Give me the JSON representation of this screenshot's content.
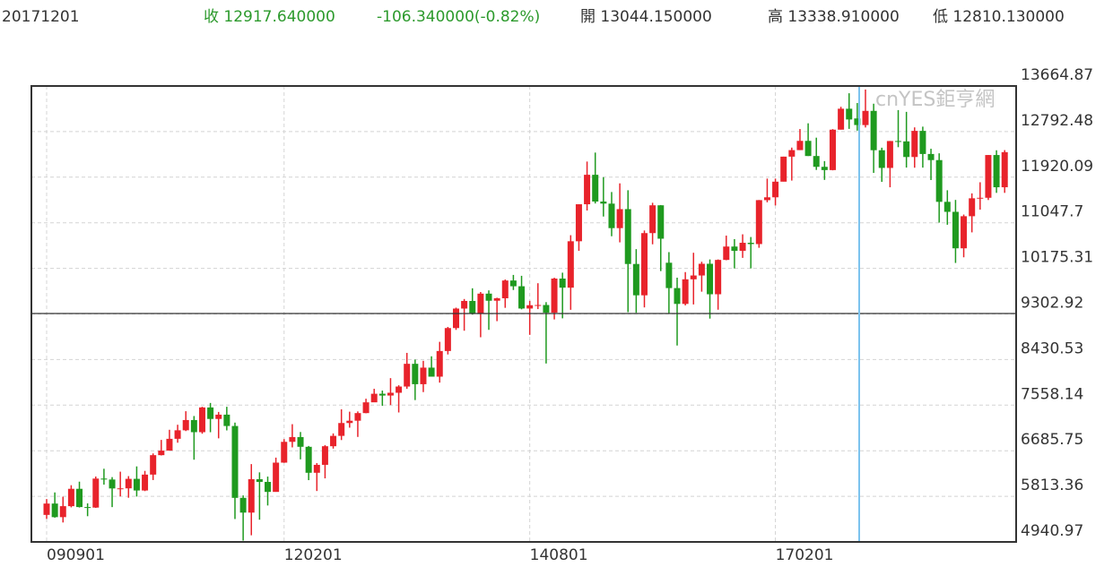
{
  "header": {
    "date": "20171201",
    "close": {
      "label": "收",
      "value": "12917.640000"
    },
    "change": "-106.340000(-0.82%)",
    "open": {
      "label": "開",
      "value": "13044.150000"
    },
    "high": {
      "label": "高",
      "value": "13338.910000"
    },
    "low": {
      "label": "低",
      "value": "12810.130000"
    }
  },
  "watermark": "cnYES鉅亨網",
  "chart_data": {
    "type": "candlestick",
    "up_color": "#e8232b",
    "down_color": "#1f9a1f",
    "grid": true,
    "ylim": [
      4940.97,
      13664.87
    ],
    "yticks": [
      4940.97,
      5813.36,
      6685.75,
      7558.14,
      8430.53,
      9302.92,
      10175.31,
      11047.7,
      11920.09,
      12792.48,
      13664.87
    ],
    "categories": [
      "090901",
      null,
      null,
      null,
      null,
      null,
      null,
      null,
      null,
      null,
      null,
      null,
      null,
      null,
      null,
      null,
      null,
      null,
      null,
      null,
      null,
      null,
      null,
      null,
      null,
      null,
      null,
      null,
      null,
      "120201",
      null,
      null,
      null,
      null,
      null,
      null,
      null,
      null,
      null,
      null,
      null,
      null,
      null,
      null,
      null,
      null,
      null,
      null,
      null,
      null,
      null,
      null,
      null,
      null,
      null,
      null,
      null,
      null,
      null,
      "140801",
      null,
      null,
      null,
      null,
      null,
      null,
      null,
      null,
      null,
      null,
      null,
      null,
      null,
      null,
      null,
      null,
      null,
      null,
      null,
      null,
      null,
      null,
      null,
      null,
      null,
      null,
      null,
      null,
      null,
      "170201",
      null,
      null,
      null,
      null,
      null,
      null,
      null,
      null,
      null,
      null,
      null,
      null,
      null,
      null,
      null,
      null,
      null,
      null,
      null,
      null,
      null,
      null,
      null,
      null,
      null,
      null,
      null,
      null
    ],
    "ohlc": [
      [
        5458,
        5761,
        5382,
        5675
      ],
      [
        5675,
        5888,
        5405,
        5415
      ],
      [
        5415,
        5806,
        5313,
        5625
      ],
      [
        5625,
        6026,
        5602,
        5957
      ],
      [
        5957,
        6094,
        5599,
        5608
      ],
      [
        5608,
        5679,
        5433,
        5598
      ],
      [
        5598,
        6192,
        5592,
        6153
      ],
      [
        6153,
        6341,
        6037,
        6135
      ],
      [
        6135,
        6181,
        5607,
        5964
      ],
      [
        5964,
        6285,
        5812,
        5966
      ],
      [
        5966,
        6200,
        5786,
        6148
      ],
      [
        6148,
        6386,
        5809,
        5925
      ],
      [
        5925,
        6300,
        5913,
        6229
      ],
      [
        6229,
        6634,
        6125,
        6601
      ],
      [
        6601,
        6893,
        6595,
        6688
      ],
      [
        6688,
        7087,
        6688,
        6914
      ],
      [
        6914,
        7183,
        6839,
        7077
      ],
      [
        7077,
        7442,
        7062,
        7273
      ],
      [
        7273,
        7350,
        6514,
        7041
      ],
      [
        7041,
        7527,
        7011,
        7514
      ],
      [
        7514,
        7600,
        7040,
        7294
      ],
      [
        7294,
        7428,
        6923,
        7376
      ],
      [
        7376,
        7527,
        7075,
        7159
      ],
      [
        7159,
        7224,
        5379,
        5784
      ],
      [
        5784,
        5831,
        4966,
        5502
      ],
      [
        5502,
        6430,
        5068,
        6141
      ],
      [
        6141,
        6272,
        5366,
        6089
      ],
      [
        6089,
        6191,
        5638,
        5898
      ],
      [
        5898,
        6554,
        5900,
        6458
      ],
      [
        6458,
        6908,
        6454,
        6856
      ],
      [
        6856,
        7194,
        6750,
        6947
      ],
      [
        6947,
        7044,
        6521,
        6761
      ],
      [
        6761,
        6777,
        6123,
        6264
      ],
      [
        6264,
        6450,
        5915,
        6416
      ],
      [
        6416,
        6794,
        6157,
        6772
      ],
      [
        6772,
        7017,
        6726,
        6970
      ],
      [
        6970,
        7478,
        6890,
        7216
      ],
      [
        7216,
        7433,
        7127,
        7260
      ],
      [
        7260,
        7438,
        6950,
        7406
      ],
      [
        7406,
        7681,
        7403,
        7612
      ],
      [
        7612,
        7871,
        7626,
        7776
      ],
      [
        7776,
        7837,
        7545,
        7742
      ],
      [
        7742,
        8075,
        7560,
        7795
      ],
      [
        7795,
        7939,
        7418,
        7914
      ],
      [
        7914,
        8558,
        7870,
        8349
      ],
      [
        8349,
        8430,
        7655,
        7959
      ],
      [
        7959,
        8406,
        7808,
        8276
      ],
      [
        8276,
        8493,
        8103,
        8103
      ],
      [
        8103,
        8770,
        7989,
        8594
      ],
      [
        8594,
        9055,
        8528,
        9033
      ],
      [
        9033,
        9424,
        8998,
        9406
      ],
      [
        9406,
        9589,
        8982,
        9552
      ],
      [
        9552,
        9794,
        9290,
        9306
      ],
      [
        9306,
        9723,
        8857,
        9692
      ],
      [
        9692,
        9754,
        8999,
        9556
      ],
      [
        9556,
        9614,
        9165,
        9603
      ],
      [
        9603,
        9962,
        9420,
        9943
      ],
      [
        9943,
        10050,
        9761,
        9833
      ],
      [
        9833,
        10033,
        9392,
        9407
      ],
      [
        9407,
        9554,
        8903,
        9470
      ],
      [
        9470,
        9891,
        9396,
        9474
      ],
      [
        9474,
        9529,
        8355,
        9327
      ],
      [
        9327,
        9996,
        9198,
        9980
      ],
      [
        9980,
        10093,
        9219,
        9806
      ],
      [
        9806,
        10810,
        9382,
        10694
      ],
      [
        10694,
        11402,
        10511,
        11402
      ],
      [
        11402,
        12219,
        11282,
        11966
      ],
      [
        11966,
        12391,
        11417,
        11454
      ],
      [
        11454,
        11920,
        11167,
        11414
      ],
      [
        11414,
        11636,
        10790,
        10945
      ],
      [
        10945,
        11802,
        10673,
        11309
      ],
      [
        11309,
        11670,
        9338,
        10259
      ],
      [
        10259,
        10543,
        9325,
        9660
      ],
      [
        9660,
        10900,
        9428,
        10850
      ],
      [
        10850,
        11430,
        10636,
        11382
      ],
      [
        11382,
        11387,
        10123,
        10743
      ],
      [
        10283,
        10486,
        9314,
        9798
      ],
      [
        9798,
        9997,
        8699,
        9495
      ],
      [
        9495,
        10104,
        9467,
        9966
      ],
      [
        9966,
        10474,
        9485,
        10039
      ],
      [
        10039,
        10302,
        9729,
        10263
      ],
      [
        10263,
        10346,
        9214,
        9680
      ],
      [
        9680,
        10346,
        9384,
        10337
      ],
      [
        10337,
        10802,
        10331,
        10593
      ],
      [
        10593,
        10735,
        10174,
        10511
      ],
      [
        10511,
        10827,
        10376,
        10665
      ],
      [
        10665,
        10775,
        10175,
        10640
      ],
      [
        10640,
        11483,
        10569,
        11481
      ],
      [
        11481,
        11893,
        11440,
        11535
      ],
      [
        11535,
        11893,
        11379,
        11834
      ],
      [
        11834,
        12313,
        11838,
        12313
      ],
      [
        12313,
        12486,
        11855,
        12438
      ],
      [
        12438,
        12841,
        12438,
        12615
      ],
      [
        12615,
        12951,
        12325,
        12325
      ],
      [
        12325,
        12676,
        12059,
        12118
      ],
      [
        12118,
        12228,
        11868,
        12056
      ],
      [
        12056,
        12840,
        12051,
        12829
      ],
      [
        12829,
        13267,
        12831,
        13230
      ],
      [
        13230,
        13526,
        12844,
        13024
      ],
      [
        13044.15,
        13338.91,
        12810.13,
        12917.64
      ],
      [
        12917,
        13597,
        12871,
        13189
      ],
      [
        13189,
        13326,
        12002,
        12436
      ],
      [
        12436,
        12484,
        11831,
        12097
      ],
      [
        12097,
        12613,
        11727,
        12612
      ],
      [
        12612,
        13204,
        12494,
        12605
      ],
      [
        12605,
        13170,
        12104,
        12306
      ],
      [
        12306,
        12873,
        12101,
        12806
      ],
      [
        12806,
        12887,
        12103,
        12364
      ],
      [
        12364,
        12464,
        11865,
        12247
      ],
      [
        12247,
        12377,
        11051,
        11448
      ],
      [
        11448,
        11670,
        11010,
        11257
      ],
      [
        11257,
        11485,
        10279,
        10559
      ],
      [
        10559,
        11205,
        10387,
        11173
      ],
      [
        11173,
        11610,
        10864,
        11516
      ],
      [
        11516,
        11823,
        11299,
        11526
      ],
      [
        11526,
        12344,
        11483,
        12344
      ],
      [
        12344,
        12435,
        11620,
        11727
      ],
      [
        11727,
        12438,
        11620,
        12399
      ]
    ]
  }
}
